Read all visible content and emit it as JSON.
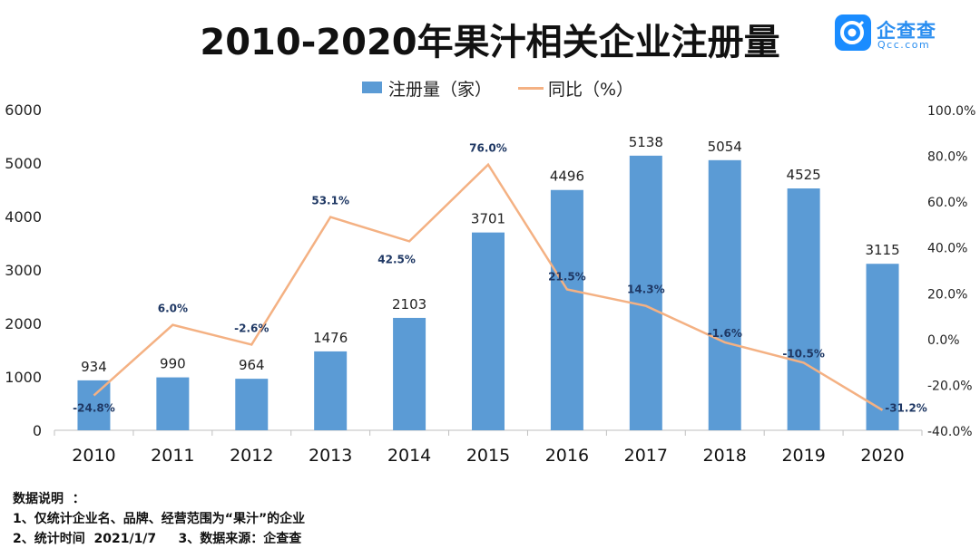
{
  "title": "2010-2020年果汁相关企业注册量",
  "logo": {
    "name": "企查查",
    "url": "Qcc.com",
    "icon": "qcc-logo-icon",
    "color": "#1a8cff"
  },
  "legend": {
    "bar_label": "注册量（家）",
    "line_label": "同比（%）"
  },
  "colors": {
    "bar": "#5b9bd5",
    "line": "#f4b183",
    "percent_label": "#1f3864"
  },
  "chart_data": {
    "type": "bar+line",
    "title": "2010-2020年果汁相关企业注册量",
    "categories": [
      "2010",
      "2011",
      "2012",
      "2013",
      "2014",
      "2015",
      "2016",
      "2017",
      "2018",
      "2019",
      "2020"
    ],
    "series": [
      {
        "name": "注册量（家）",
        "type": "bar",
        "axis": "left",
        "values": [
          934,
          990,
          964,
          1476,
          2103,
          3701,
          4496,
          5138,
          5054,
          4525,
          3115
        ],
        "labels": [
          "934",
          "990",
          "964",
          "1476",
          "2103",
          "3701",
          "4496",
          "5138",
          "5054",
          "4525",
          "3115"
        ]
      },
      {
        "name": "同比（%）",
        "type": "line",
        "axis": "right",
        "values": [
          -24.8,
          6.0,
          -2.6,
          53.1,
          42.5,
          76.0,
          21.5,
          14.3,
          -1.6,
          -10.5,
          -31.2
        ],
        "labels": [
          "-24.8%",
          "6.0%",
          "-2.6%",
          "53.1%",
          "42.5%",
          "76.0%",
          "21.5%",
          "14.3%",
          "-1.6%",
          "-10.5%",
          "-31.2%"
        ]
      }
    ],
    "y_left": {
      "min": 0,
      "max": 6000,
      "ticks": [
        "0",
        "1000",
        "2000",
        "3000",
        "4000",
        "5000",
        "6000"
      ]
    },
    "y_right": {
      "min": -40,
      "max": 100,
      "ticks": [
        "-40.0%",
        "-20.0%",
        "0.0%",
        "20.0%",
        "40.0%",
        "60.0%",
        "80.0%",
        "100.0%"
      ]
    },
    "grid": false,
    "legend_position": "top-center"
  },
  "notes": {
    "heading": "数据说明  ：",
    "line1": "1、仅统计企业名、品牌、经营范围为“果汁”的企业",
    "line2": "2、统计时间  2021/1/7     3、数据来源：企查查"
  }
}
